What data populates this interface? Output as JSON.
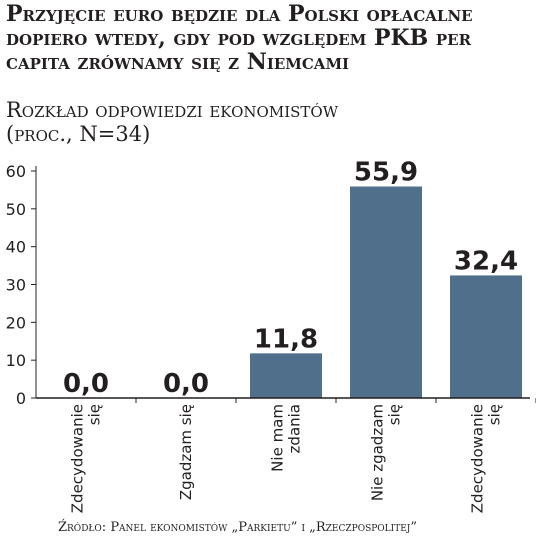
{
  "title": "Przyjęcie euro będzie dla Polski opłacalne dopiero wtedy, gdy pod względem PKB per capita zrównamy się z Niemcami",
  "subtitle_line1": "Rozkład odpowiedzi ekonomistów",
  "subtitle_line2": "(proc., N=34)",
  "source": "Źródło: Panel ekonomistów „Parkietu” i „Rzeczpospolitej”",
  "colors": {
    "bar": "#4f6f8a",
    "axis": "#231f20",
    "text": "#231f20"
  },
  "chart_data": {
    "type": "bar",
    "categories": [
      [
        "Zdecydowanie",
        "się"
      ],
      [
        "Zgadzam się"
      ],
      [
        "Nie mam",
        "zdania"
      ],
      [
        "Nie zgadzam",
        "się"
      ],
      [
        "Zdecydowanie",
        "się"
      ]
    ],
    "values": [
      0.0,
      0.0,
      11.8,
      55.9,
      32.4
    ],
    "value_labels": [
      "0,0",
      "0,0",
      "11,8",
      "55,9",
      "32,4"
    ],
    "yticks": [
      "0",
      "10",
      "20",
      "30",
      "40",
      "50",
      "60"
    ],
    "ylim": [
      0,
      60
    ],
    "grid": false,
    "legend": "none"
  }
}
